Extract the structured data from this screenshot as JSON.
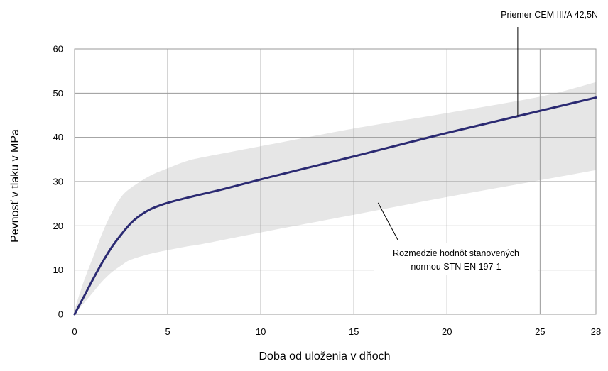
{
  "chart_data": {
    "type": "line",
    "xlabel": "Doba od uloženia v dňoch",
    "ylabel": "Pevnosť v tlaku v MPa",
    "xlim": [
      0,
      28
    ],
    "ylim": [
      0,
      60
    ],
    "x_ticks": [
      0,
      5,
      10,
      15,
      20,
      25,
      28
    ],
    "y_ticks": [
      0,
      10,
      20,
      30,
      40,
      50,
      60
    ],
    "grid": true,
    "colors": {
      "line": "#2b2a72",
      "band": "#e6e6e6",
      "grid": "#9a9a9a"
    },
    "series": [
      {
        "name": "Priemer CEM III/A 42,5N",
        "x": [
          0,
          0.5,
          1,
          1.5,
          2,
          2.5,
          3,
          3.5,
          4,
          4.5,
          5,
          6,
          7,
          8,
          10,
          12,
          15,
          18,
          20,
          22,
          24,
          26,
          28
        ],
        "y": [
          0,
          4,
          8,
          11.8,
          15.2,
          18,
          20.5,
          22.3,
          23.6,
          24.5,
          25.2,
          26.3,
          27.3,
          28.3,
          30.5,
          32.6,
          35.7,
          38.9,
          41,
          43,
          45,
          47,
          49
        ]
      }
    ],
    "band": {
      "name": "Rozmedzie hodnôt stanovených normou STN EN 197-1",
      "x": [
        0,
        0.5,
        1,
        1.5,
        2,
        2.5,
        3,
        4,
        5,
        6,
        7,
        10,
        15,
        20,
        25,
        28
      ],
      "upper": [
        1,
        7.5,
        13,
        18.5,
        23,
        26.5,
        28.5,
        31.2,
        33,
        34.6,
        35.6,
        38,
        42,
        45.5,
        49.2,
        52.5
      ],
      "lower": [
        0,
        2.5,
        5,
        7.5,
        9.5,
        11,
        12.3,
        13.6,
        14.5,
        15.3,
        16,
        18.5,
        22.5,
        26.5,
        30.3,
        32.6
      ]
    },
    "annotations": [
      {
        "text": "Priemer CEM III/A 42,5N",
        "x": 23.8,
        "y": 44.9
      },
      {
        "lines": [
          "Rozmedzie hodnôt stanovených",
          "normou STN EN 197-1"
        ],
        "x": 16.3,
        "y": 25.2
      }
    ]
  }
}
